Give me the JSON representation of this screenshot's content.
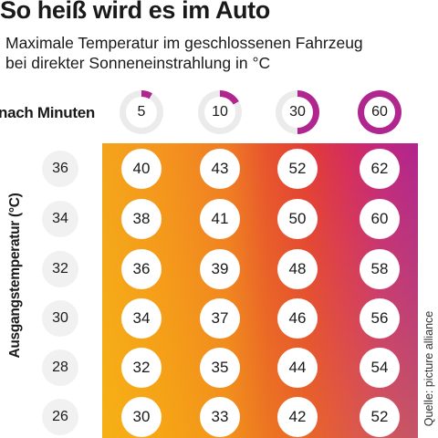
{
  "header": {
    "title": "So heiß wird es im Auto",
    "subtitle_line1": "Maximale Temperatur im geschlossenen Fahrzeug",
    "subtitle_line2": "bei direkter Sonneneinstrahlung in °C"
  },
  "source": "Quelle: picture alliance",
  "colors": {
    "ring_track": "#ebebeb",
    "ring_fill": "#b0258e",
    "heat_low": "#f4a41c",
    "heat_high": "#b0258e"
  },
  "chart_data": {
    "type": "table",
    "x_label": "nach Minuten",
    "y_label": "Ausgangstemperatur (°C)",
    "minutes": [
      5,
      10,
      30,
      60
    ],
    "minutes_fraction_of_hour": [
      0.0833,
      0.1667,
      0.5,
      1.0
    ],
    "start_temps": [
      36,
      34,
      32,
      30,
      28,
      26
    ],
    "values": [
      [
        40,
        43,
        52,
        62
      ],
      [
        38,
        41,
        50,
        60
      ],
      [
        36,
        39,
        48,
        58
      ],
      [
        34,
        37,
        46,
        56
      ],
      [
        32,
        35,
        44,
        54
      ],
      [
        30,
        33,
        42,
        52
      ]
    ]
  }
}
